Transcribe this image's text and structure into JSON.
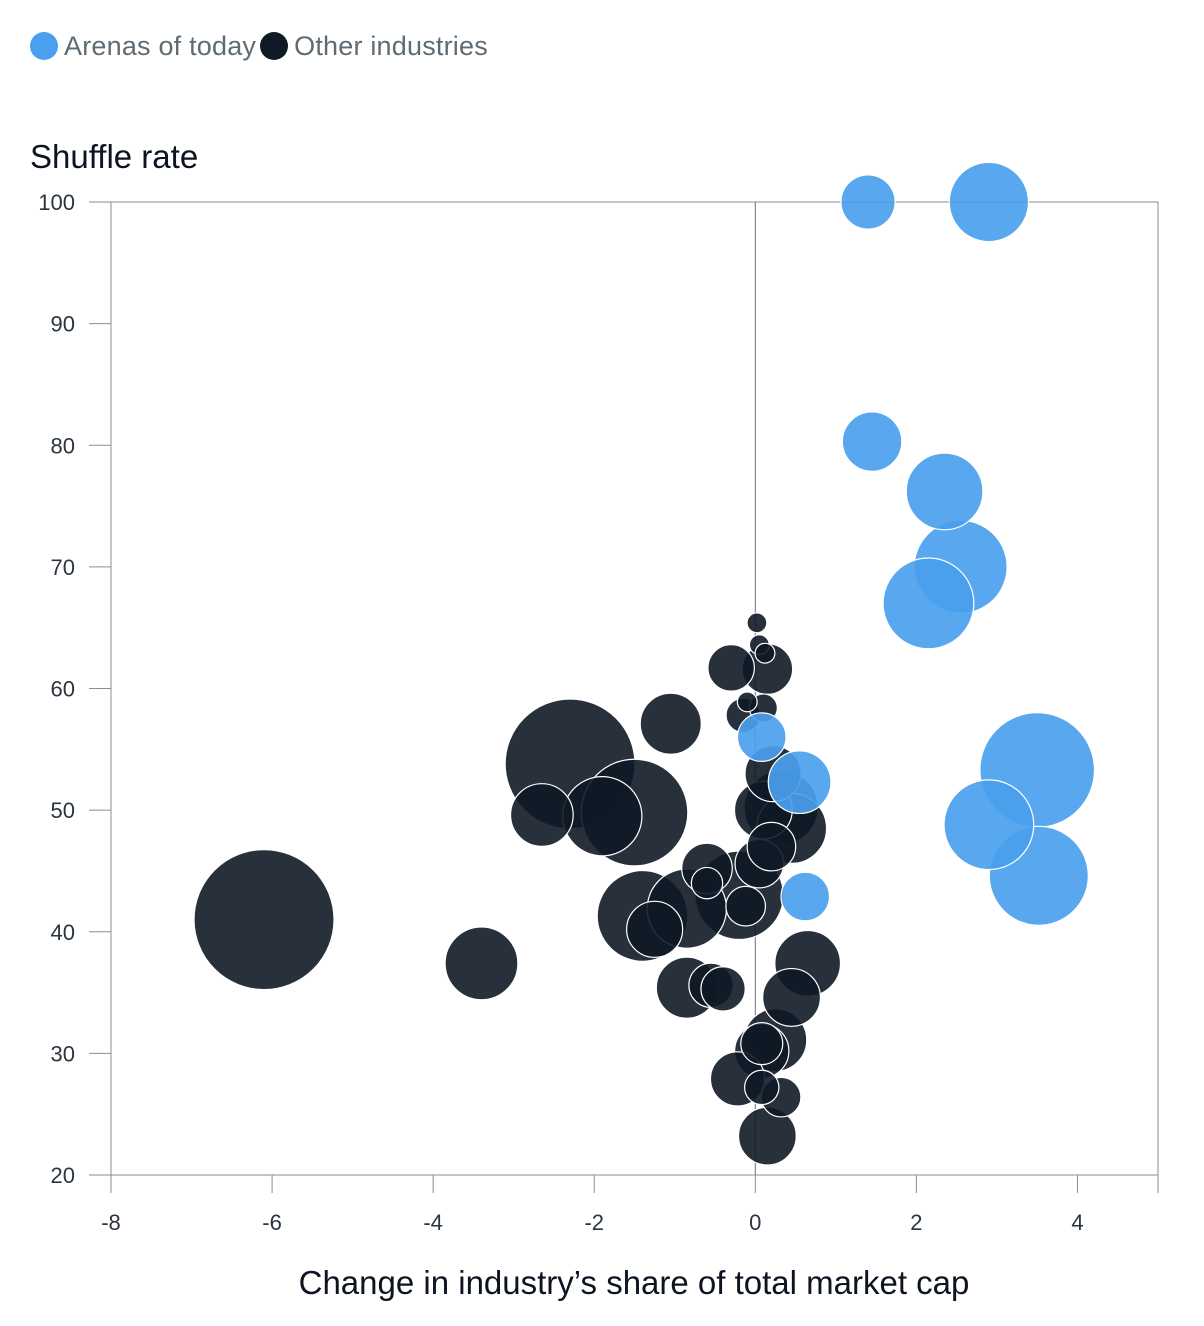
{
  "legend": {
    "series_a": "Arenas of today",
    "series_b": "Other industries"
  },
  "colors": {
    "arenas": "#4aa0ee",
    "other": "#0f1a26",
    "axis": "#8a8f94",
    "zero_line": "#6b7075"
  },
  "chart_data": {
    "type": "scatter",
    "ylabel": "Shuffle rate",
    "xlabel": "Change in industry’s share of total market cap",
    "xlim": [
      -8,
      5
    ],
    "ylim": [
      20,
      100
    ],
    "xticks": [
      "-8",
      "-6",
      "-4",
      "-2",
      "0",
      "2",
      "4"
    ],
    "yticks": [
      "100",
      "90",
      "80",
      "70",
      "60",
      "50",
      "40",
      "30",
      "20"
    ],
    "grid": false,
    "legend_position": "top-left",
    "series": [
      {
        "name": "Other industries",
        "points": [
          {
            "x": -6.1,
            "y": 41.0,
            "size": 1.0
          },
          {
            "x": -3.4,
            "y": 37.4,
            "size": 0.27
          },
          {
            "x": -2.3,
            "y": 53.8,
            "size": 0.86
          },
          {
            "x": -2.65,
            "y": 49.6,
            "size": 0.2
          },
          {
            "x": -1.9,
            "y": 49.5,
            "size": 0.32
          },
          {
            "x": -1.5,
            "y": 49.8,
            "size": 0.58
          },
          {
            "x": -1.05,
            "y": 57.1,
            "size": 0.19
          },
          {
            "x": -1.4,
            "y": 41.3,
            "size": 0.42
          },
          {
            "x": -1.25,
            "y": 40.2,
            "size": 0.16
          },
          {
            "x": -0.85,
            "y": 41.9,
            "size": 0.32
          },
          {
            "x": -0.85,
            "y": 35.4,
            "size": 0.19
          },
          {
            "x": -0.6,
            "y": 45.2,
            "size": 0.13
          },
          {
            "x": -0.6,
            "y": 44.0,
            "size": 0.05
          },
          {
            "x": -0.55,
            "y": 35.6,
            "size": 0.1
          },
          {
            "x": -0.4,
            "y": 35.3,
            "size": 0.1
          },
          {
            "x": -0.3,
            "y": 61.7,
            "size": 0.11
          },
          {
            "x": -0.2,
            "y": 43.0,
            "size": 0.4
          },
          {
            "x": -0.15,
            "y": 57.8,
            "size": 0.06
          },
          {
            "x": -0.12,
            "y": 42.1,
            "size": 0.08
          },
          {
            "x": -0.1,
            "y": 58.9,
            "size": 0.02
          },
          {
            "x": 0.02,
            "y": 65.4,
            "size": 0.02
          },
          {
            "x": 0.05,
            "y": 63.6,
            "size": 0.02
          },
          {
            "x": 0.1,
            "y": 58.4,
            "size": 0.04
          },
          {
            "x": 0.15,
            "y": 61.6,
            "size": 0.13
          },
          {
            "x": 0.12,
            "y": 62.9,
            "size": 0.02
          },
          {
            "x": 0.05,
            "y": 45.6,
            "size": 0.12
          },
          {
            "x": 0.1,
            "y": 50.0,
            "size": 0.17
          },
          {
            "x": 0.22,
            "y": 53.0,
            "size": 0.16
          },
          {
            "x": 0.2,
            "y": 47.0,
            "size": 0.12
          },
          {
            "x": 0.32,
            "y": 50.2,
            "size": 0.28
          },
          {
            "x": 0.45,
            "y": 48.5,
            "size": 0.25
          },
          {
            "x": 0.65,
            "y": 37.4,
            "size": 0.22
          },
          {
            "x": 0.45,
            "y": 34.6,
            "size": 0.17
          },
          {
            "x": 0.25,
            "y": 31.1,
            "size": 0.2
          },
          {
            "x": 0.08,
            "y": 30.2,
            "size": 0.15
          },
          {
            "x": 0.08,
            "y": 30.8,
            "size": 0.09
          },
          {
            "x": -0.22,
            "y": 27.9,
            "size": 0.15
          },
          {
            "x": 0.32,
            "y": 26.4,
            "size": 0.08
          },
          {
            "x": 0.08,
            "y": 27.2,
            "size": 0.06
          },
          {
            "x": 0.15,
            "y": 23.2,
            "size": 0.17
          }
        ]
      },
      {
        "name": "Arenas of today",
        "points": [
          {
            "x": 1.4,
            "y": 100.0,
            "size": 0.15
          },
          {
            "x": 2.9,
            "y": 100.0,
            "size": 0.32
          },
          {
            "x": 1.45,
            "y": 80.3,
            "size": 0.18
          },
          {
            "x": 2.35,
            "y": 76.2,
            "size": 0.3
          },
          {
            "x": 2.55,
            "y": 70.0,
            "size": 0.44
          },
          {
            "x": 2.15,
            "y": 67.0,
            "size": 0.42
          },
          {
            "x": 0.08,
            "y": 56.0,
            "size": 0.12
          },
          {
            "x": 0.55,
            "y": 52.3,
            "size": 0.2
          },
          {
            "x": 0.62,
            "y": 42.9,
            "size": 0.12
          },
          {
            "x": 3.5,
            "y": 53.3,
            "size": 0.67
          },
          {
            "x": 2.9,
            "y": 48.8,
            "size": 0.41
          },
          {
            "x": 3.52,
            "y": 44.6,
            "size": 0.5
          }
        ]
      }
    ]
  }
}
